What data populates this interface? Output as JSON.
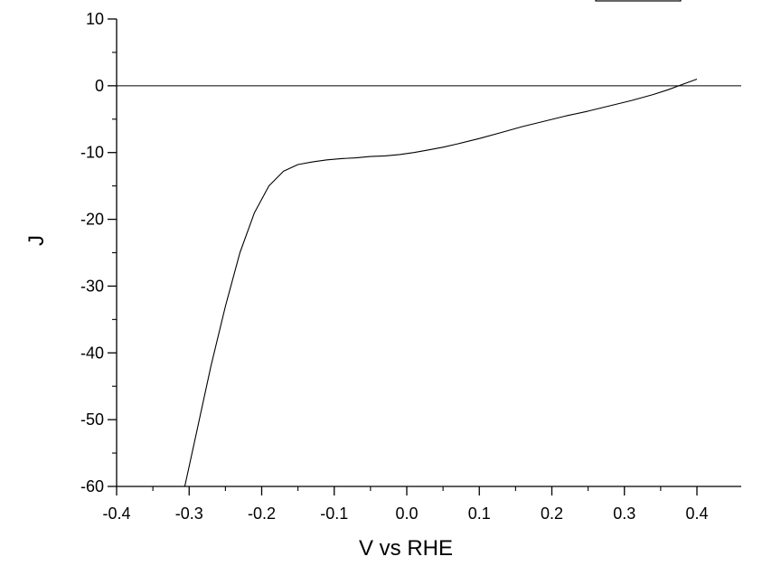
{
  "chart_data": {
    "type": "line",
    "title": "",
    "xlabel": "V vs RHE",
    "ylabel": "J",
    "xlim": [
      -0.4,
      0.4
    ],
    "ylim": [
      -60,
      10
    ],
    "x_ticks": [
      -0.4,
      -0.3,
      -0.2,
      -0.1,
      0.0,
      0.1,
      0.2,
      0.3,
      0.4
    ],
    "x_tick_labels": [
      "-0.4",
      "-0.3",
      "-0.2",
      "-0.1",
      "0.0",
      "0.1",
      "0.2",
      "0.3",
      "0.4"
    ],
    "y_ticks": [
      10,
      0,
      -10,
      -20,
      -30,
      -40,
      -50,
      -60
    ],
    "y_tick_labels": [
      "10",
      "0",
      "-10",
      "-20",
      "-30",
      "-40",
      "-50",
      "-60"
    ],
    "zero_line": true,
    "grid": false,
    "legend": "top-right",
    "series": [
      {
        "color": "#000000",
        "x": [
          -0.306,
          -0.29,
          -0.27,
          -0.25,
          -0.23,
          -0.21,
          -0.19,
          -0.17,
          -0.15,
          -0.13,
          -0.11,
          -0.09,
          -0.07,
          -0.05,
          -0.03,
          -0.01,
          0.01,
          0.03,
          0.05,
          0.07,
          0.1,
          0.13,
          0.16,
          0.19,
          0.22,
          0.25,
          0.28,
          0.31,
          0.34,
          0.36,
          0.38,
          0.4
        ],
        "y": [
          -60,
          -52,
          -42,
          -33,
          -25,
          -19,
          -15,
          -12.8,
          -11.8,
          -11.4,
          -11.1,
          -10.9,
          -10.8,
          -10.6,
          -10.5,
          -10.3,
          -10.0,
          -9.6,
          -9.2,
          -8.7,
          -7.9,
          -7.0,
          -6.1,
          -5.3,
          -4.5,
          -3.8,
          -3.0,
          -2.2,
          -1.3,
          -0.6,
          0.2,
          1.0
        ]
      }
    ]
  }
}
